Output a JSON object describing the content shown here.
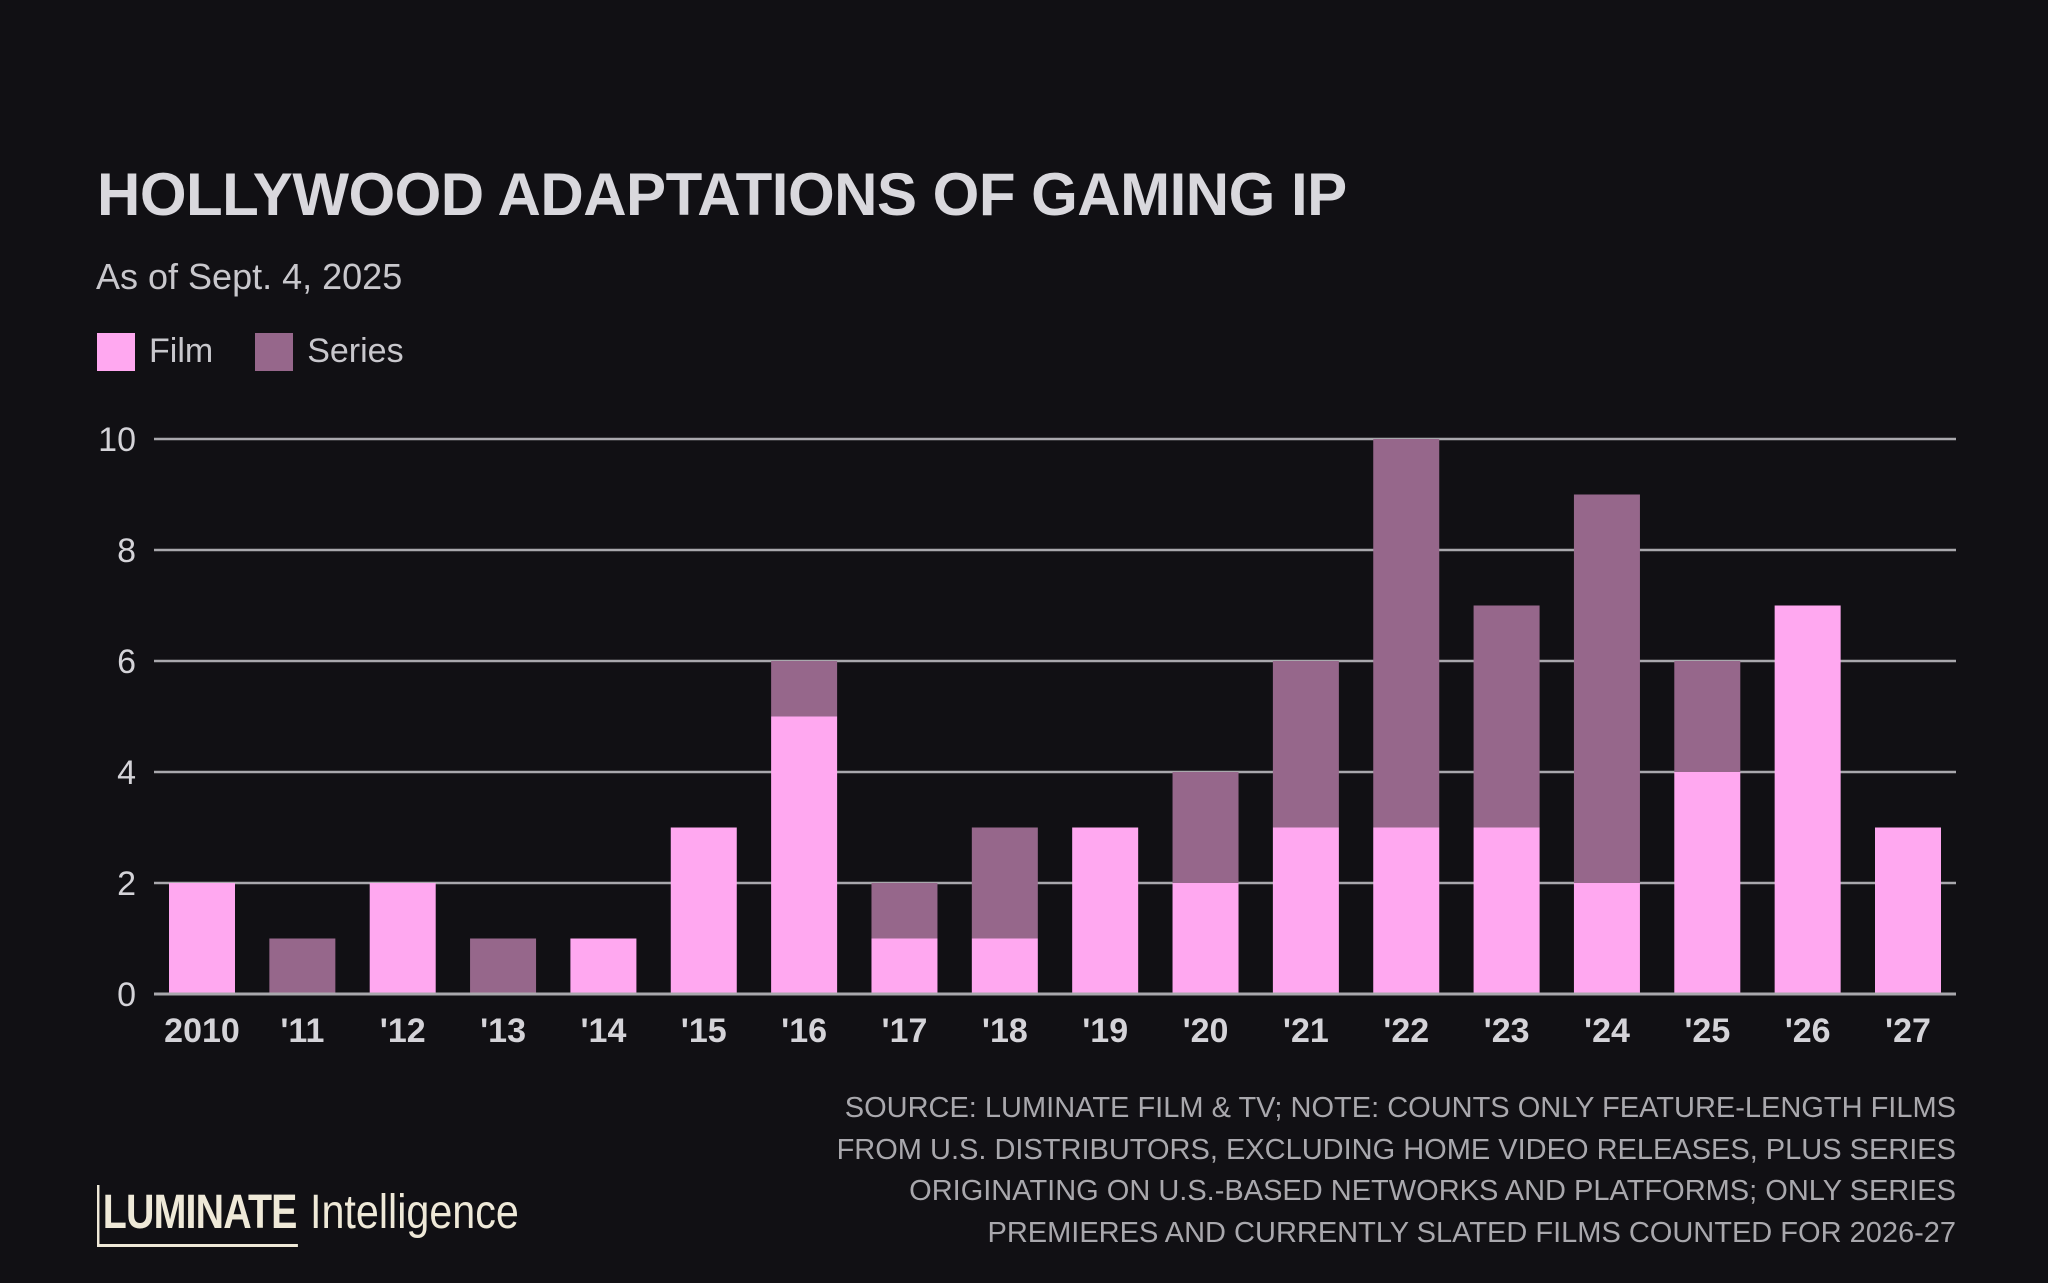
{
  "header": {
    "title": "HOLLYWOOD ADAPTATIONS OF GAMING IP",
    "subtitle": "As of Sept. 4, 2025"
  },
  "legend": [
    {
      "label": "Film",
      "color": "#ffa8f0"
    },
    {
      "label": "Series",
      "color": "#96678b"
    }
  ],
  "footnote": [
    "SOURCE: LUMINATE FILM & TV; NOTE: COUNTS ONLY FEATURE-LENGTH FILMS",
    "FROM U.S. DISTRIBUTORS, EXCLUDING HOME VIDEO RELEASES, PLUS SERIES",
    "ORIGINATING ON U.S.-BASED NETWORKS AND PLATFORMS; ONLY SERIES",
    "PREMIERES AND CURRENTLY SLATED FILMS COUNTED FOR 2026-27"
  ],
  "logo": {
    "brand": "LUMINATE",
    "product": "Intelligence"
  },
  "chart_data": {
    "type": "bar",
    "stacked": true,
    "title": "HOLLYWOOD ADAPTATIONS OF GAMING IP",
    "subtitle": "As of Sept. 4, 2025",
    "xlabel": "",
    "ylabel": "",
    "categories": [
      "2010",
      "'11",
      "'12",
      "'13",
      "'14",
      "'15",
      "'16",
      "'17",
      "'18",
      "'19",
      "'20",
      "'21",
      "'22",
      "'23",
      "'24",
      "'25",
      "'26",
      "'27"
    ],
    "series": [
      {
        "name": "Film",
        "color": "#ffa8f0",
        "values": [
          2,
          0,
          2,
          0,
          1,
          3,
          5,
          1,
          1,
          3,
          2,
          3,
          3,
          3,
          2,
          4,
          7,
          3
        ]
      },
      {
        "name": "Series",
        "color": "#96678b",
        "values": [
          0,
          1,
          0,
          1,
          0,
          0,
          1,
          1,
          2,
          0,
          2,
          3,
          7,
          4,
          7,
          2,
          0,
          0
        ]
      }
    ],
    "ylim": [
      0,
      10
    ],
    "yticks": [
      0,
      2,
      4,
      6,
      8,
      10
    ],
    "grid": true,
    "legend_position": "top-left",
    "gridline_color": "#a9a8ad"
  }
}
